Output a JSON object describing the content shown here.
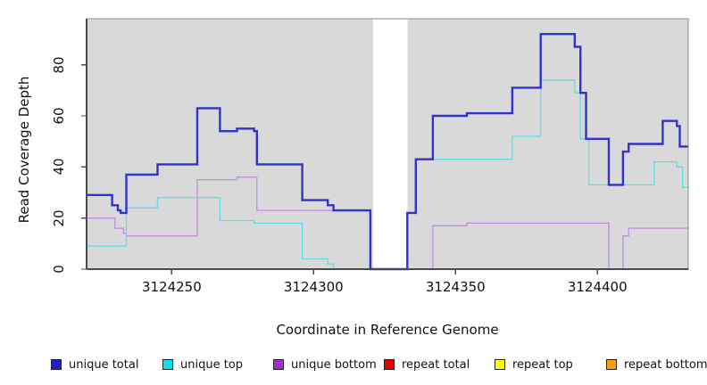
{
  "y_axis": {
    "title": "Read Coverage Depth",
    "ticks": [
      {
        "v": 0,
        "label": "0"
      },
      {
        "v": 20,
        "label": "20"
      },
      {
        "v": 40,
        "label": "40"
      },
      {
        "v": 60,
        "label": "60"
      },
      {
        "v": 80,
        "label": "80"
      }
    ]
  },
  "x_axis": {
    "title": "Coordinate in Reference Genome",
    "ticks": [
      {
        "v": 3124250,
        "label": "3124250"
      },
      {
        "v": 3124300,
        "label": "3124300"
      },
      {
        "v": 3124350,
        "label": "3124350"
      },
      {
        "v": 3124400,
        "label": "3124400"
      }
    ]
  },
  "legend": {
    "items": [
      {
        "label": "unique total",
        "color": "#2222cc"
      },
      {
        "label": "unique top",
        "color": "#0ce0ea"
      },
      {
        "label": "unique bottom",
        "color": "#9933cc"
      },
      {
        "label": "repeat total",
        "color": "#e60000"
      },
      {
        "label": "repeat top",
        "color": "#ffff00"
      },
      {
        "label": "repeat bottom",
        "color": "#ff9d00"
      }
    ]
  },
  "chart_data": {
    "type": "line",
    "step": true,
    "xlim": [
      3124220,
      3124432
    ],
    "ylim": [
      0,
      98
    ],
    "grid": false,
    "plot_bg": "#d9d9d9",
    "masked_region": {
      "from": 3124321,
      "to": 3124333,
      "color": "#ffffff"
    },
    "legend_position": "bottom",
    "draw_order": [
      3,
      4,
      2,
      1,
      5,
      0
    ],
    "series": [
      {
        "name": "unique total",
        "color": "#3333cc",
        "line_width": 2.4,
        "points": [
          [
            3124220,
            29
          ],
          [
            3124229,
            25
          ],
          [
            3124231,
            23
          ],
          [
            3124232,
            22
          ],
          [
            3124234,
            37
          ],
          [
            3124245,
            41
          ],
          [
            3124259,
            63
          ],
          [
            3124267,
            54
          ],
          [
            3124273,
            55
          ],
          [
            3124279,
            54
          ],
          [
            3124280,
            41
          ],
          [
            3124296,
            27
          ],
          [
            3124305,
            25
          ],
          [
            3124307,
            23
          ],
          [
            3124320,
            0
          ],
          [
            3124333,
            22
          ],
          [
            3124336,
            43
          ],
          [
            3124342,
            60
          ],
          [
            3124354,
            61
          ],
          [
            3124370,
            71
          ],
          [
            3124380,
            92
          ],
          [
            3124392,
            87
          ],
          [
            3124394,
            69
          ],
          [
            3124396,
            51
          ],
          [
            3124404,
            33
          ],
          [
            3124409,
            46
          ],
          [
            3124411,
            49
          ],
          [
            3124423,
            58
          ],
          [
            3124428,
            56
          ],
          [
            3124429,
            48
          ]
        ]
      },
      {
        "name": "unique top",
        "color": "#63dde4",
        "line_width": 1.3,
        "points": [
          [
            3124220,
            9
          ],
          [
            3124234,
            24
          ],
          [
            3124245,
            28
          ],
          [
            3124267,
            19
          ],
          [
            3124279,
            18
          ],
          [
            3124296,
            4
          ],
          [
            3124305,
            2
          ],
          [
            3124307,
            0
          ],
          [
            3124333,
            22
          ],
          [
            3124336,
            43
          ],
          [
            3124370,
            52
          ],
          [
            3124380,
            74
          ],
          [
            3124392,
            69
          ],
          [
            3124394,
            51
          ],
          [
            3124397,
            33
          ],
          [
            3124420,
            42
          ],
          [
            3124428,
            40
          ],
          [
            3124430,
            32
          ]
        ]
      },
      {
        "name": "unique bottom",
        "color": "#c08fdf",
        "line_width": 1.3,
        "points": [
          [
            3124220,
            20
          ],
          [
            3124230,
            16
          ],
          [
            3124233,
            14
          ],
          [
            3124234,
            13
          ],
          [
            3124259,
            35
          ],
          [
            3124273,
            36
          ],
          [
            3124280,
            23
          ],
          [
            3124320,
            0
          ],
          [
            3124342,
            17
          ],
          [
            3124354,
            18
          ],
          [
            3124404,
            0
          ],
          [
            3124409,
            13
          ],
          [
            3124411,
            16
          ]
        ]
      },
      {
        "name": "repeat total",
        "color": "#e60000",
        "line_width": 1.3,
        "points": [
          [
            3124220,
            0
          ]
        ]
      },
      {
        "name": "repeat top",
        "color": "#ffff00",
        "line_width": 1.3,
        "points": [
          [
            3124220,
            0
          ]
        ]
      },
      {
        "name": "repeat bottom",
        "color": "#ff9d00",
        "line_width": 1.7,
        "points": [
          [
            3124220,
            0
          ]
        ]
      }
    ]
  }
}
